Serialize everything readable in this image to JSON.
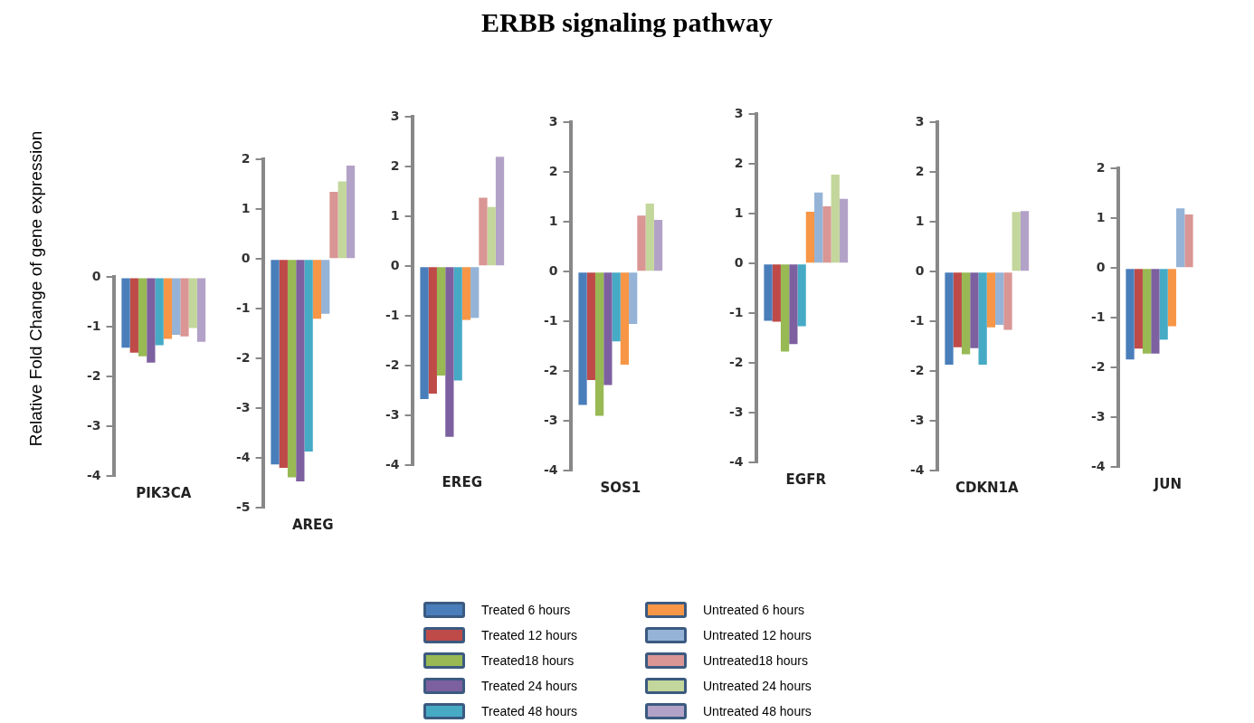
{
  "chart_data": [
    {
      "type": "bar",
      "ylabel": "Relative Fold Change of gene expression",
      "categories": [
        "PIK3CA"
      ],
      "ylim": [
        -4,
        0
      ],
      "yticks": [
        -4,
        -3,
        -2,
        -1,
        0
      ],
      "grid": false,
      "legend": "bottom",
      "series": [
        {
          "name": "Treated 6 hours",
          "color": "#4a7ebb",
          "values": [
            -1.42
          ]
        },
        {
          "name": "Treated 12 hours",
          "color": "#be4b48",
          "values": [
            -1.52
          ]
        },
        {
          "name": "Treated18 hours",
          "color": "#98b954",
          "values": [
            -1.59
          ]
        },
        {
          "name": "Treated 24 hours",
          "color": "#7d60a0",
          "values": [
            -1.72
          ]
        },
        {
          "name": "Treated 48 hours",
          "color": "#46aac5",
          "values": [
            -1.37
          ]
        },
        {
          "name": "Untreated 6 hours",
          "color": "#f79646",
          "values": [
            -1.24
          ]
        },
        {
          "name": "Untreated 12 hours",
          "color": "#95b3d7",
          "values": [
            -1.16
          ]
        },
        {
          "name": "Untreated18 hours",
          "color": "#d99694",
          "values": [
            -1.19
          ]
        },
        {
          "name": "Untreated 24 hours",
          "color": "#c3d69b",
          "values": [
            -1.02
          ]
        },
        {
          "name": "Untreated 48 hours",
          "color": "#b3a2c7",
          "values": [
            -1.3
          ]
        }
      ]
    },
    {
      "type": "bar",
      "categories": [
        "AREG"
      ],
      "ylim": [
        -5,
        2
      ],
      "yticks": [
        -5,
        -4,
        -3,
        -2,
        -1,
        0,
        1,
        2
      ],
      "grid": false,
      "series": [
        {
          "color": "#4a7ebb",
          "values": [
            -4.13
          ]
        },
        {
          "color": "#be4b48",
          "values": [
            -4.2
          ]
        },
        {
          "color": "#98b954",
          "values": [
            -4.39
          ]
        },
        {
          "color": "#7d60a0",
          "values": [
            -4.47
          ]
        },
        {
          "color": "#46aac5",
          "values": [
            -3.87
          ]
        },
        {
          "color": "#f79646",
          "values": [
            -1.2
          ]
        },
        {
          "color": "#95b3d7",
          "values": [
            -1.1
          ]
        },
        {
          "color": "#d99694",
          "values": [
            1.35
          ]
        },
        {
          "color": "#c3d69b",
          "values": [
            1.56
          ]
        },
        {
          "color": "#b3a2c7",
          "values": [
            1.88
          ]
        }
      ]
    },
    {
      "type": "bar",
      "categories": [
        "EREG"
      ],
      "ylim": [
        -4,
        3
      ],
      "yticks": [
        -4,
        -3,
        -2,
        -1,
        0,
        1,
        2,
        3
      ],
      "grid": false,
      "series": [
        {
          "color": "#4a7ebb",
          "values": [
            -2.67
          ]
        },
        {
          "color": "#be4b48",
          "values": [
            -2.56
          ]
        },
        {
          "color": "#98b954",
          "values": [
            -2.2
          ]
        },
        {
          "color": "#7d60a0",
          "values": [
            -3.43
          ]
        },
        {
          "color": "#46aac5",
          "values": [
            -2.3
          ]
        },
        {
          "color": "#f79646",
          "values": [
            -1.08
          ]
        },
        {
          "color": "#95b3d7",
          "values": [
            -1.04
          ]
        },
        {
          "color": "#d99694",
          "values": [
            1.38
          ]
        },
        {
          "color": "#c3d69b",
          "values": [
            1.19
          ]
        },
        {
          "color": "#b3a2c7",
          "values": [
            2.2
          ]
        }
      ]
    },
    {
      "type": "bar",
      "title": "ERBB signaling pathway",
      "categories": [
        "SOS1"
      ],
      "ylim": [
        -4,
        3
      ],
      "yticks": [
        -4,
        -3,
        -2,
        -1,
        0,
        1,
        2,
        3
      ],
      "grid": false,
      "series": [
        {
          "color": "#4a7ebb",
          "values": [
            -2.68
          ]
        },
        {
          "color": "#be4b48",
          "values": [
            -2.18
          ]
        },
        {
          "color": "#98b954",
          "values": [
            -2.9
          ]
        },
        {
          "color": "#7d60a0",
          "values": [
            -2.28
          ]
        },
        {
          "color": "#46aac5",
          "values": [
            -1.4
          ]
        },
        {
          "color": "#f79646",
          "values": [
            -1.87
          ]
        },
        {
          "color": "#95b3d7",
          "values": [
            -1.05
          ]
        },
        {
          "color": "#d99694",
          "values": [
            1.13
          ]
        },
        {
          "color": "#c3d69b",
          "values": [
            1.37
          ]
        },
        {
          "color": "#b3a2c7",
          "values": [
            1.04
          ]
        }
      ]
    },
    {
      "type": "bar",
      "categories": [
        "EGFR"
      ],
      "ylim": [
        -4,
        3
      ],
      "yticks": [
        -4,
        -3,
        -2,
        -1,
        0,
        1,
        2,
        3
      ],
      "grid": false,
      "series": [
        {
          "color": "#4a7ebb",
          "values": [
            -1.15
          ]
        },
        {
          "color": "#be4b48",
          "values": [
            -1.17
          ]
        },
        {
          "color": "#98b954",
          "values": [
            -1.77
          ]
        },
        {
          "color": "#7d60a0",
          "values": [
            -1.62
          ]
        },
        {
          "color": "#46aac5",
          "values": [
            -1.26
          ]
        },
        {
          "color": "#f79646",
          "values": [
            1.04
          ]
        },
        {
          "color": "#95b3d7",
          "values": [
            1.43
          ]
        },
        {
          "color": "#d99694",
          "values": [
            1.15
          ]
        },
        {
          "color": "#c3d69b",
          "values": [
            1.79
          ]
        },
        {
          "color": "#b3a2c7",
          "values": [
            1.3
          ]
        }
      ]
    },
    {
      "type": "bar",
      "categories": [
        "CDKN1A"
      ],
      "ylim": [
        -4,
        3
      ],
      "yticks": [
        -4,
        -3,
        -2,
        -1,
        0,
        1,
        2,
        3
      ],
      "grid": false,
      "series": [
        {
          "color": "#4a7ebb",
          "values": [
            -1.87
          ]
        },
        {
          "color": "#be4b48",
          "values": [
            -1.52
          ]
        },
        {
          "color": "#98b954",
          "values": [
            -1.66
          ]
        },
        {
          "color": "#7d60a0",
          "values": [
            -1.54
          ]
        },
        {
          "color": "#46aac5",
          "values": [
            -1.87
          ]
        },
        {
          "color": "#f79646",
          "values": [
            -1.12
          ]
        },
        {
          "color": "#95b3d7",
          "values": [
            -1.07
          ]
        },
        {
          "color": "#d99694",
          "values": [
            -1.17
          ]
        },
        {
          "color": "#c3d69b",
          "values": [
            1.2
          ]
        },
        {
          "color": "#b3a2c7",
          "values": [
            1.22
          ]
        }
      ]
    },
    {
      "type": "bar",
      "categories": [
        "JUN"
      ],
      "ylim": [
        -4,
        2
      ],
      "yticks": [
        -4,
        -3,
        -2,
        -1,
        0,
        1,
        2
      ],
      "grid": false,
      "series": [
        {
          "color": "#4a7ebb",
          "values": [
            -1.84
          ]
        },
        {
          "color": "#be4b48",
          "values": [
            -1.62
          ]
        },
        {
          "color": "#98b954",
          "values": [
            -1.72
          ]
        },
        {
          "color": "#7d60a0",
          "values": [
            -1.72
          ]
        },
        {
          "color": "#46aac5",
          "values": [
            -1.44
          ]
        },
        {
          "color": "#f79646",
          "values": [
            -1.17
          ]
        },
        {
          "color": "#95b3d7",
          "values": [
            1.2
          ]
        },
        {
          "color": "#d99694",
          "values": [
            1.08
          ]
        },
        {
          "color": "#c3d69b",
          "values": [
            null
          ]
        },
        {
          "color": "#b3a2c7",
          "values": [
            null
          ]
        }
      ]
    }
  ]
}
